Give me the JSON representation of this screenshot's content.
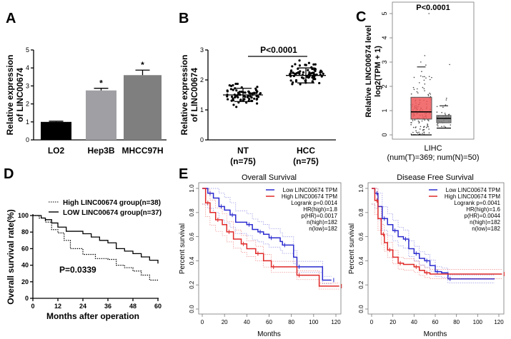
{
  "panels": {
    "a": "A",
    "b": "B",
    "c": "C",
    "d": "D",
    "e": "E"
  },
  "chart_data": [
    {
      "id": "A",
      "type": "bar",
      "ylabel": "Relative expression of LINC00674",
      "ylabel_lines": [
        "Relative expression",
        "of LINC00674"
      ],
      "categories": [
        "LO2",
        "Hep3B",
        "MHCC97H"
      ],
      "values": [
        1.0,
        2.75,
        3.6
      ],
      "errors": [
        0.04,
        0.12,
        0.28
      ],
      "annotations": [
        "",
        "*",
        "*"
      ],
      "colors": [
        "#000000",
        "#a0a0a4",
        "#7f7f7f"
      ],
      "ylim": [
        0,
        5
      ],
      "yticks": [
        0,
        1,
        2,
        3,
        4,
        5
      ]
    },
    {
      "id": "B",
      "type": "scatter",
      "ylabel_lines": [
        "Relative expression",
        "of LINC00674"
      ],
      "categories": [
        "NT",
        "HCC"
      ],
      "n_labels": [
        "(n=75)",
        "(n=75)"
      ],
      "n": [
        75,
        75
      ],
      "means": [
        1.5,
        2.15
      ],
      "sd": [
        0.22,
        0.25
      ],
      "ranges": [
        [
          1.1,
          1.87
        ],
        [
          1.7,
          2.65
        ]
      ],
      "p_label": "P<0.0001",
      "ylim": [
        0,
        3
      ],
      "yticks": [
        0,
        1,
        2,
        3
      ]
    },
    {
      "id": "C",
      "type": "box",
      "ylabel_lines": [
        "Relative LINC00674 level",
        "log2(TPM + 1)"
      ],
      "p_label": "P<0.0001",
      "xlabel": "LIHC",
      "subtitle": "(num(T)=369; num(N)=50)",
      "ylim": [
        0,
        5
      ],
      "yticks": [
        0,
        1,
        2,
        3,
        4,
        5
      ],
      "boxes": [
        {
          "group": "T",
          "n": 369,
          "q1": 0.65,
          "median": 0.95,
          "q3": 1.55,
          "whisker_low": 0,
          "whisker_high": 2.8,
          "max": 5.0,
          "color": "#f0585a"
        },
        {
          "group": "N",
          "n": 50,
          "q1": 0.5,
          "median": 0.68,
          "q3": 0.8,
          "whisker_low": 0.28,
          "whisker_high": 1.2,
          "max": 2.9,
          "color": "#7a7a7a"
        }
      ]
    },
    {
      "id": "D",
      "type": "line",
      "xlabel": "Months after operation",
      "ylabel": "Overall survival rate(%)",
      "p_label": "P=0.0339",
      "xlim": [
        0,
        60
      ],
      "ylim": [
        0,
        100
      ],
      "xticks": [
        0,
        12,
        24,
        36,
        48,
        60
      ],
      "yticks": [
        0,
        20,
        40,
        60,
        80,
        100
      ],
      "series": [
        {
          "name": "High LINC00674 group(n=38)",
          "style": "dotted",
          "points": [
            [
              0,
              100
            ],
            [
              3,
              97
            ],
            [
              6,
              92
            ],
            [
              9,
              83
            ],
            [
              12,
              79
            ],
            [
              15,
              70
            ],
            [
              18,
              60
            ],
            [
              24,
              53
            ],
            [
              30,
              48
            ],
            [
              36,
              47
            ],
            [
              40,
              40
            ],
            [
              44,
              37
            ],
            [
              48,
              33
            ],
            [
              52,
              28
            ],
            [
              56,
              22
            ],
            [
              60,
              22
            ]
          ]
        },
        {
          "name": "LOW LINC00674 group(n=37)",
          "style": "solid",
          "points": [
            [
              0,
              100
            ],
            [
              4,
              97
            ],
            [
              6,
              95
            ],
            [
              9,
              91
            ],
            [
              12,
              86
            ],
            [
              16,
              81
            ],
            [
              20,
              81
            ],
            [
              24,
              78
            ],
            [
              28,
              74
            ],
            [
              32,
              70
            ],
            [
              36,
              67
            ],
            [
              40,
              60
            ],
            [
              44,
              57
            ],
            [
              48,
              54
            ],
            [
              52,
              50
            ],
            [
              56,
              46
            ],
            [
              60,
              42
            ]
          ]
        }
      ]
    },
    {
      "id": "E1",
      "type": "line",
      "title": "Overall Survival",
      "xlabel": "Months",
      "ylabel": "Percent survival",
      "xlim": [
        0,
        120
      ],
      "ylim": [
        0,
        1
      ],
      "xticks": [
        0,
        20,
        40,
        60,
        80,
        100,
        120
      ],
      "yticks": [
        "0.0",
        "0.2",
        "0.4",
        "0.6",
        "0.8",
        "1.0"
      ],
      "stats": [
        "Logrank p=0.0014",
        "HR(high)=1.8",
        "p(HR)=0.0017",
        "n(high)=182",
        "n(low)=182"
      ],
      "series": [
        {
          "name": "Low LINC00674 TPM",
          "color": "#2b2bd0",
          "points": [
            [
              0,
              1
            ],
            [
              5,
              0.96
            ],
            [
              10,
              0.92
            ],
            [
              15,
              0.85
            ],
            [
              20,
              0.82
            ],
            [
              25,
              0.78
            ],
            [
              30,
              0.72
            ],
            [
              40,
              0.7
            ],
            [
              45,
              0.66
            ],
            [
              50,
              0.64
            ],
            [
              55,
              0.62
            ],
            [
              60,
              0.59
            ],
            [
              70,
              0.56
            ],
            [
              72,
              0.53
            ],
            [
              82,
              0.43
            ],
            [
              85,
              0.35
            ],
            [
              108,
              0.24
            ],
            [
              116,
              0.24
            ]
          ]
        },
        {
          "name": "High LINC00674 TPM",
          "color": "#e02828",
          "points": [
            [
              0,
              1
            ],
            [
              3,
              0.88
            ],
            [
              7,
              0.8
            ],
            [
              12,
              0.74
            ],
            [
              18,
              0.7
            ],
            [
              22,
              0.64
            ],
            [
              28,
              0.58
            ],
            [
              35,
              0.54
            ],
            [
              40,
              0.5
            ],
            [
              48,
              0.46
            ],
            [
              55,
              0.4
            ],
            [
              62,
              0.35
            ],
            [
              84,
              0.35
            ],
            [
              85,
              0.28
            ],
            [
              105,
              0.19
            ],
            [
              123,
              0.19
            ]
          ]
        }
      ]
    },
    {
      "id": "E2",
      "type": "line",
      "title": "Disease Free Survival",
      "xlabel": "Months",
      "ylabel": "Percent survival",
      "xlim": [
        0,
        120
      ],
      "ylim": [
        0,
        1
      ],
      "xticks": [
        0,
        20,
        40,
        60,
        80,
        100,
        120
      ],
      "yticks": [
        "0.0",
        "0.2",
        "0.4",
        "0.6",
        "0.8",
        "1.0"
      ],
      "stats": [
        "Logrank p=0.0041",
        "HR(high)=1.6",
        "p(HR)=0.0044",
        "n(high)=182",
        "n(low)=182"
      ],
      "series": [
        {
          "name": "Low LINC00674 TPM",
          "color": "#2b2bd0",
          "points": [
            [
              0,
              1
            ],
            [
              3,
              0.96
            ],
            [
              6,
              0.85
            ],
            [
              10,
              0.75
            ],
            [
              15,
              0.7
            ],
            [
              20,
              0.65
            ],
            [
              25,
              0.6
            ],
            [
              30,
              0.58
            ],
            [
              35,
              0.5
            ],
            [
              40,
              0.46
            ],
            [
              45,
              0.42
            ],
            [
              50,
              0.4
            ],
            [
              55,
              0.36
            ],
            [
              60,
              0.31
            ],
            [
              66,
              0.3
            ],
            [
              72,
              0.25
            ],
            [
              116,
              0.25
            ]
          ]
        },
        {
          "name": "High LINC00674 TPM",
          "color": "#e02828",
          "points": [
            [
              0,
              1
            ],
            [
              3,
              0.9
            ],
            [
              6,
              0.75
            ],
            [
              9,
              0.62
            ],
            [
              12,
              0.55
            ],
            [
              15,
              0.49
            ],
            [
              20,
              0.43
            ],
            [
              25,
              0.38
            ],
            [
              30,
              0.37
            ],
            [
              40,
              0.35
            ],
            [
              45,
              0.32
            ],
            [
              50,
              0.3
            ],
            [
              55,
              0.29
            ],
            [
              123,
              0.29
            ]
          ]
        }
      ]
    }
  ]
}
